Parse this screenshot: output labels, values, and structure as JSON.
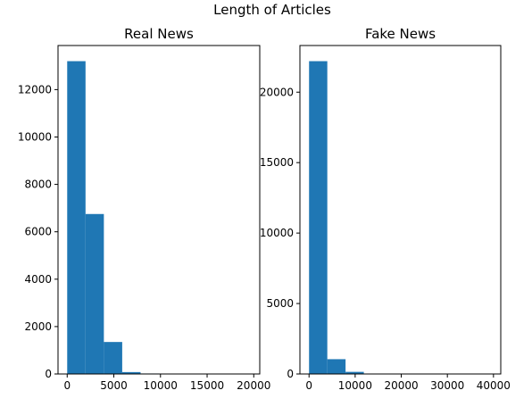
{
  "figure": {
    "suptitle": "Length of Articles"
  },
  "chart_data": [
    {
      "type": "bar",
      "subtype": "histogram",
      "title": "Real News",
      "xlabel": "",
      "ylabel": "",
      "color": "#1f77b4",
      "bin_edges": [
        0,
        1966,
        3932,
        5898,
        7864,
        9830,
        11796,
        13762,
        15728,
        17694,
        19660
      ],
      "values": [
        13200,
        6750,
        1350,
        80,
        20,
        8,
        4,
        2,
        1,
        1
      ],
      "xlim": [
        -983,
        20643
      ],
      "ylim": [
        0,
        13860
      ],
      "xticks": [
        0,
        5000,
        10000,
        15000,
        20000
      ],
      "xtick_labels": [
        "0",
        "5000",
        "10000",
        "15000",
        "20000"
      ],
      "yticks": [
        0,
        2000,
        4000,
        6000,
        8000,
        10000,
        12000
      ],
      "ytick_labels": [
        "0",
        "2000",
        "4000",
        "6000",
        "8000",
        "10000",
        "12000"
      ]
    },
    {
      "type": "bar",
      "subtype": "histogram",
      "title": "Fake News",
      "xlabel": "",
      "ylabel": "",
      "color": "#1f77b4",
      "bin_edges": [
        0,
        3960,
        7920,
        11880,
        15840,
        19800,
        23760,
        27720,
        31680,
        35640,
        39600
      ],
      "values": [
        22200,
        1050,
        150,
        30,
        10,
        5,
        3,
        2,
        1,
        1
      ],
      "xlim": [
        -1980,
        41580
      ],
      "ylim": [
        0,
        23310
      ],
      "xticks": [
        0,
        10000,
        20000,
        30000,
        40000
      ],
      "xtick_labels": [
        "0",
        "10000",
        "20000",
        "30000",
        "40000"
      ],
      "yticks": [
        0,
        5000,
        10000,
        15000,
        20000
      ],
      "ytick_labels": [
        "0",
        "5000",
        "10000",
        "15000",
        "20000"
      ]
    }
  ]
}
